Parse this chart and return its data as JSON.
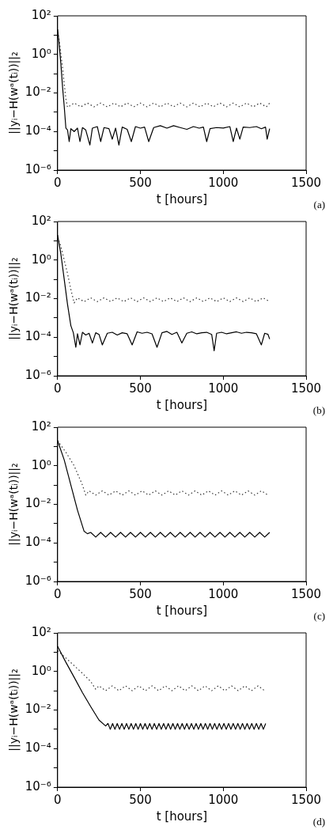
{
  "chart_data": [
    {
      "type": "line",
      "xlabel": "t [hours]",
      "ylabel": "||yᵢ−H(wᵃ(tᵢ))||₂",
      "annotations": [
        "(a)"
      ],
      "log": true,
      "marker": "none",
      "xlim": [
        0,
        1500
      ],
      "xticks": [
        0,
        500,
        1000,
        1500
      ],
      "ylim": [
        1e-06,
        100
      ],
      "yticks": [
        {
          "value": 1e-06,
          "label": "10⁻⁶"
        },
        {
          "value": 1e-05,
          "label": null
        },
        {
          "value": 0.0001,
          "label": "10⁻⁴"
        },
        {
          "value": 0.001,
          "label": null
        },
        {
          "value": 0.01,
          "label": "10⁻²"
        },
        {
          "value": 0.1,
          "label": null
        },
        {
          "value": 1,
          "label": "10⁰"
        },
        {
          "value": 10,
          "label": null
        },
        {
          "value": 100,
          "label": "10²"
        }
      ],
      "series": [
        {
          "color": "#000000",
          "line_style": "solid",
          "x": [
            0,
            10,
            20,
            30,
            40,
            50,
            60,
            70,
            80,
            100,
            120,
            135,
            150,
            170,
            195,
            210,
            240,
            260,
            280,
            310,
            330,
            350,
            370,
            390,
            420,
            445,
            470,
            500,
            525,
            550,
            580,
            620,
            660,
            700,
            740,
            780,
            820,
            855,
            880,
            900,
            920,
            960,
            1000,
            1040,
            1060,
            1080,
            1100,
            1120,
            1160,
            1200,
            1230,
            1255,
            1265,
            1280
          ],
          "values": [
            20,
            3,
            0.3,
            0.02,
            0.002,
            0.00015,
            0.00012,
            3e-05,
            0.00014,
            0.0001,
            0.00015,
            3e-05,
            0.00016,
            0.00012,
            2e-05,
            0.00015,
            0.00018,
            3e-05,
            0.00016,
            0.00014,
            4e-05,
            0.00015,
            2e-05,
            0.00017,
            0.00013,
            3e-05,
            0.00018,
            0.00015,
            0.00017,
            3e-05,
            0.00016,
            0.0002,
            0.00015,
            0.0002,
            0.00016,
            0.00013,
            0.00018,
            0.00015,
            0.00017,
            3e-05,
            0.00014,
            0.00016,
            0.00015,
            0.00018,
            3e-05,
            0.00015,
            4e-05,
            0.00017,
            0.00016,
            0.00018,
            0.00014,
            0.00017,
            4e-05,
            0.00014
          ]
        },
        {
          "color": "#333333",
          "line_style": "dotted",
          "x": [
            0,
            10,
            20,
            30,
            40,
            50,
            60,
            100,
            140,
            180,
            220,
            260,
            300,
            340,
            380,
            420,
            460,
            500,
            540,
            580,
            620,
            660,
            700,
            740,
            780,
            820,
            860,
            900,
            940,
            980,
            1020,
            1060,
            1100,
            1140,
            1180,
            1220,
            1260,
            1280
          ],
          "values": [
            15,
            5,
            1,
            0.2,
            0.03,
            0.005,
            0.0018,
            0.003,
            0.0019,
            0.003,
            0.0019,
            0.003,
            0.0019,
            0.003,
            0.0019,
            0.003,
            0.0019,
            0.003,
            0.0019,
            0.003,
            0.0019,
            0.003,
            0.0019,
            0.003,
            0.0019,
            0.003,
            0.0019,
            0.003,
            0.0019,
            0.003,
            0.0019,
            0.003,
            0.0019,
            0.003,
            0.0019,
            0.003,
            0.0019,
            0.003
          ]
        }
      ]
    },
    {
      "type": "line",
      "xlabel": "t [hours]",
      "ylabel": "||yᵢ−H(wᵃ(tᵢ))||₂",
      "annotations": [
        "(b)"
      ],
      "log": true,
      "marker": "none",
      "xlim": [
        0,
        1500
      ],
      "xticks": [
        0,
        500,
        1000,
        1500
      ],
      "ylim": [
        1e-06,
        100
      ],
      "yticks": [
        {
          "value": 1e-06,
          "label": "10⁻⁶"
        },
        {
          "value": 1e-05,
          "label": null
        },
        {
          "value": 0.0001,
          "label": "10⁻⁴"
        },
        {
          "value": 0.001,
          "label": null
        },
        {
          "value": 0.01,
          "label": "10⁻²"
        },
        {
          "value": 0.1,
          "label": null
        },
        {
          "value": 1,
          "label": "10⁰"
        },
        {
          "value": 10,
          "label": null
        },
        {
          "value": 100,
          "label": "10²"
        }
      ],
      "series": [
        {
          "color": "#000000",
          "line_style": "solid",
          "x": [
            0,
            20,
            40,
            60,
            80,
            95,
            110,
            120,
            135,
            150,
            170,
            190,
            210,
            230,
            250,
            270,
            300,
            330,
            360,
            390,
            420,
            450,
            480,
            510,
            540,
            570,
            600,
            630,
            660,
            690,
            720,
            750,
            780,
            810,
            840,
            870,
            900,
            930,
            945,
            960,
            990,
            1020,
            1050,
            1080,
            1110,
            1140,
            1170,
            1200,
            1230,
            1250,
            1270,
            1280
          ],
          "values": [
            20,
            2,
            0.1,
            0.005,
            0.0004,
            0.00017,
            3e-05,
            0.00015,
            4e-05,
            0.00018,
            0.00013,
            0.00016,
            5e-05,
            0.00017,
            0.00014,
            4e-05,
            0.00016,
            0.00018,
            0.00013,
            0.00017,
            0.00015,
            4e-05,
            0.00019,
            0.00016,
            0.00018,
            0.00015,
            3e-05,
            0.00017,
            0.0002,
            0.00014,
            0.00018,
            5e-05,
            0.00016,
            0.00019,
            0.00015,
            0.00017,
            0.00018,
            0.00014,
            2e-05,
            0.00016,
            0.00018,
            0.00015,
            0.00017,
            0.00019,
            0.00016,
            0.00018,
            0.00017,
            0.00015,
            4e-05,
            0.00016,
            0.00014,
            8e-05
          ]
        },
        {
          "color": "#333333",
          "line_style": "dotted",
          "x": [
            0,
            20,
            40,
            60,
            80,
            100,
            120,
            160,
            200,
            240,
            280,
            320,
            360,
            400,
            440,
            480,
            520,
            560,
            600,
            640,
            680,
            720,
            760,
            800,
            840,
            880,
            920,
            960,
            1000,
            1040,
            1080,
            1120,
            1160,
            1200,
            1240,
            1280
          ],
          "values": [
            15,
            5,
            1,
            0.2,
            0.03,
            0.006,
            0.011,
            0.007,
            0.011,
            0.007,
            0.011,
            0.007,
            0.011,
            0.007,
            0.011,
            0.007,
            0.011,
            0.007,
            0.011,
            0.007,
            0.011,
            0.007,
            0.011,
            0.007,
            0.011,
            0.007,
            0.011,
            0.007,
            0.011,
            0.007,
            0.011,
            0.007,
            0.011,
            0.007,
            0.011,
            0.007
          ]
        }
      ]
    },
    {
      "type": "line",
      "xlabel": "t [hours]",
      "ylabel": "||yᵢ−H(wᵃ(tᵢ))||₂",
      "annotations": [
        "(c)"
      ],
      "log": true,
      "marker": "none",
      "xlim": [
        0,
        1500
      ],
      "xticks": [
        0,
        500,
        1000,
        1500
      ],
      "ylim": [
        1e-06,
        100
      ],
      "yticks": [
        {
          "value": 1e-06,
          "label": "10⁻⁶"
        },
        {
          "value": 1e-05,
          "label": null
        },
        {
          "value": 0.0001,
          "label": "10⁻⁴"
        },
        {
          "value": 0.001,
          "label": null
        },
        {
          "value": 0.01,
          "label": "10⁻²"
        },
        {
          "value": 0.1,
          "label": null
        },
        {
          "value": 1,
          "label": "10⁰"
        },
        {
          "value": 10,
          "label": null
        },
        {
          "value": 100,
          "label": "10²"
        }
      ],
      "series": [
        {
          "color": "#000000",
          "line_style": "solid",
          "x": [
            0,
            40,
            80,
            120,
            160,
            180,
            200,
            230,
            260,
            290,
            320,
            350,
            380,
            410,
            440,
            470,
            500,
            530,
            560,
            590,
            620,
            650,
            680,
            710,
            740,
            770,
            800,
            830,
            860,
            890,
            920,
            950,
            980,
            1010,
            1040,
            1070,
            1100,
            1130,
            1160,
            1190,
            1220,
            1250,
            1280
          ],
          "values": [
            20,
            2,
            0.1,
            0.005,
            0.0004,
            0.0003,
            0.00035,
            0.0002,
            0.00035,
            0.0002,
            0.00035,
            0.0002,
            0.00035,
            0.0002,
            0.00035,
            0.0002,
            0.00035,
            0.0002,
            0.00035,
            0.0002,
            0.00035,
            0.0002,
            0.00035,
            0.0002,
            0.00035,
            0.0002,
            0.00035,
            0.0002,
            0.00035,
            0.0002,
            0.00035,
            0.0002,
            0.00035,
            0.0002,
            0.00035,
            0.0002,
            0.00035,
            0.0002,
            0.00035,
            0.0002,
            0.00035,
            0.0002,
            0.00035
          ]
        },
        {
          "color": "#333333",
          "line_style": "dotted",
          "x": [
            0,
            50,
            100,
            150,
            170,
            190,
            230,
            270,
            310,
            350,
            390,
            430,
            470,
            510,
            550,
            590,
            630,
            670,
            710,
            750,
            790,
            830,
            870,
            910,
            950,
            990,
            1030,
            1070,
            1110,
            1150,
            1190,
            1230,
            1270
          ],
          "values": [
            20,
            5,
            1,
            0.1,
            0.03,
            0.05,
            0.03,
            0.05,
            0.03,
            0.05,
            0.03,
            0.05,
            0.03,
            0.05,
            0.03,
            0.05,
            0.03,
            0.05,
            0.03,
            0.05,
            0.03,
            0.05,
            0.03,
            0.05,
            0.03,
            0.05,
            0.03,
            0.05,
            0.03,
            0.05,
            0.03,
            0.05,
            0.03
          ]
        }
      ]
    },
    {
      "type": "line",
      "xlabel": "t [hours]",
      "ylabel": "||yᵢ−H(wᵃ(tᵢ))||₂",
      "annotations": [
        "(d)"
      ],
      "log": true,
      "marker": "none",
      "xlim": [
        0,
        1500
      ],
      "xticks": [
        0,
        500,
        1000,
        1500
      ],
      "ylim": [
        1e-06,
        100
      ],
      "yticks": [
        {
          "value": 1e-06,
          "label": "10⁻⁶"
        },
        {
          "value": 1e-05,
          "label": null
        },
        {
          "value": 0.0001,
          "label": "10⁻⁴"
        },
        {
          "value": 0.001,
          "label": null
        },
        {
          "value": 0.01,
          "label": "10⁻²"
        },
        {
          "value": 0.1,
          "label": null
        },
        {
          "value": 1,
          "label": "10⁰"
        },
        {
          "value": 10,
          "label": null
        },
        {
          "value": 100,
          "label": "10²"
        }
      ],
      "series": [
        {
          "color": "#000000",
          "line_style": "solid",
          "x": [
            0,
            50,
            100,
            150,
            200,
            250,
            290,
            304,
            318,
            332,
            346,
            360,
            374,
            388,
            402,
            416,
            430,
            444,
            458,
            472,
            486,
            500,
            514,
            528,
            542,
            556,
            570,
            584,
            598,
            612,
            626,
            640,
            654,
            668,
            682,
            696,
            710,
            724,
            738,
            752,
            766,
            780,
            794,
            808,
            822,
            836,
            850,
            864,
            878,
            892,
            906,
            920,
            934,
            948,
            962,
            976,
            990,
            1004,
            1018,
            1032,
            1046,
            1060,
            1074,
            1088,
            1102,
            1116,
            1130,
            1144,
            1158,
            1172,
            1186,
            1200,
            1214,
            1228,
            1242,
            1256
          ],
          "values": [
            20,
            3,
            0.5,
            0.08,
            0.015,
            0.003,
            0.0015,
            0.002,
            0.001,
            0.002,
            0.001,
            0.002,
            0.001,
            0.002,
            0.001,
            0.002,
            0.001,
            0.002,
            0.001,
            0.002,
            0.001,
            0.002,
            0.001,
            0.002,
            0.001,
            0.002,
            0.001,
            0.002,
            0.001,
            0.002,
            0.001,
            0.002,
            0.001,
            0.002,
            0.001,
            0.002,
            0.001,
            0.002,
            0.001,
            0.002,
            0.001,
            0.002,
            0.001,
            0.002,
            0.001,
            0.002,
            0.001,
            0.002,
            0.001,
            0.002,
            0.001,
            0.002,
            0.001,
            0.002,
            0.001,
            0.002,
            0.001,
            0.002,
            0.001,
            0.002,
            0.001,
            0.002,
            0.001,
            0.002,
            0.001,
            0.002,
            0.001,
            0.002,
            0.001,
            0.002,
            0.001,
            0.002,
            0.001,
            0.002,
            0.001,
            0.002
          ]
        },
        {
          "color": "#333333",
          "line_style": "dotted",
          "x": [
            0,
            50,
            100,
            150,
            200,
            230,
            250,
            290,
            330,
            370,
            410,
            450,
            490,
            530,
            570,
            610,
            650,
            690,
            730,
            770,
            810,
            850,
            890,
            930,
            970,
            1010,
            1050,
            1090,
            1130,
            1170,
            1210,
            1250
          ],
          "values": [
            12,
            5,
            2,
            0.8,
            0.3,
            0.12,
            0.18,
            0.1,
            0.18,
            0.1,
            0.18,
            0.1,
            0.18,
            0.1,
            0.18,
            0.1,
            0.18,
            0.1,
            0.18,
            0.1,
            0.18,
            0.1,
            0.18,
            0.1,
            0.18,
            0.1,
            0.18,
            0.1,
            0.18,
            0.1,
            0.18,
            0.1
          ]
        }
      ]
    }
  ]
}
